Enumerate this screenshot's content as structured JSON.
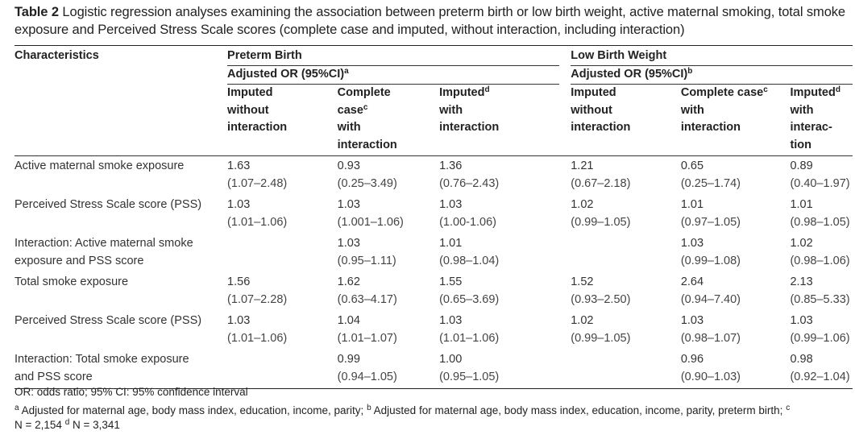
{
  "caption": {
    "label": "Table 2",
    "text": "Logistic regression analyses examining the association between preterm birth or low birth weight, active maternal smoking, total smoke exposure and Perceived Stress Scale scores (complete case and imputed, without interaction, including interaction)"
  },
  "header": {
    "characteristics": "Characteristics",
    "group_preterm": "Preterm Birth",
    "group_lbw": "Low Birth Weight",
    "adjusted_preterm": "Adjusted OR (95%CI)",
    "adjusted_preterm_sup": "a",
    "adjusted_lbw": "Adjusted OR (95%CI)",
    "adjusted_lbw_sup": "b",
    "columns": [
      {
        "line1": "Imputed",
        "line2": "without",
        "line3": "interaction",
        "line4": "",
        "sup": ""
      },
      {
        "line1": "Complete",
        "line2": "case",
        "line3": "with",
        "line4": "interaction",
        "sup": "c"
      },
      {
        "line1": "Imputed",
        "line2": "with",
        "line3": "interaction",
        "line4": "",
        "sup": "d"
      },
      {
        "line1": "Imputed",
        "line2": "without",
        "line3": "interaction",
        "line4": "",
        "sup": ""
      },
      {
        "line1": "Complete case",
        "line2": "with",
        "line3": "interaction",
        "line4": "",
        "sup": "c"
      },
      {
        "line1": "Imputed",
        "line2": "with",
        "line3": "interac-",
        "line4": "tion",
        "sup": "d"
      }
    ]
  },
  "rows": [
    {
      "label1": "Active maternal smoke exposure",
      "label2": "",
      "cells": [
        {
          "or": "1.63",
          "ci": "(1.07–2.48)"
        },
        {
          "or": "0.93",
          "ci": "(0.25–3.49)"
        },
        {
          "or": "1.36",
          "ci": "(0.76–2.43)"
        },
        {
          "or": "1.21",
          "ci": "(0.67–2.18)"
        },
        {
          "or": "0.65",
          "ci": "(0.25–1.74)"
        },
        {
          "or": "0.89",
          "ci": "(0.40–1.97)"
        }
      ]
    },
    {
      "label1": "Perceived Stress Scale score (PSS)",
      "label2": "",
      "cells": [
        {
          "or": "1.03",
          "ci": "(1.01–1.06)"
        },
        {
          "or": "1.03",
          "ci": "(1.001–1.06)"
        },
        {
          "or": "1.03",
          "ci": "(1.00-1.06)"
        },
        {
          "or": "1.02",
          "ci": "(0.99–1.05)"
        },
        {
          "or": "1.01",
          "ci": "(0.97–1.05)"
        },
        {
          "or": "1.01",
          "ci": "(0.98–1.05)"
        }
      ]
    },
    {
      "label1": "Interaction: Active maternal smoke",
      "label2": "exposure and PSS score",
      "cells": [
        {
          "or": "",
          "ci": ""
        },
        {
          "or": "1.03",
          "ci": "(0.95–1.11)"
        },
        {
          "or": "1.01",
          "ci": "(0.98–1.04)"
        },
        {
          "or": "",
          "ci": ""
        },
        {
          "or": "1.03",
          "ci": "(0.99–1.08)"
        },
        {
          "or": "1.02",
          "ci": "(0.98–1.06)"
        }
      ]
    },
    {
      "label1": "Total smoke exposure",
      "label2": "",
      "cells": [
        {
          "or": "1.56",
          "ci": "(1.07–2.28)"
        },
        {
          "or": "1.62",
          "ci": "(0.63–4.17)"
        },
        {
          "or": "1.55",
          "ci": "(0.65–3.69)"
        },
        {
          "or": "1.52",
          "ci": "(0.93–2.50)"
        },
        {
          "or": "2.64",
          "ci": "(0.94–7.40)"
        },
        {
          "or": "2.13",
          "ci": "(0.85–5.33)"
        }
      ]
    },
    {
      "label1": "Perceived Stress Scale score (PSS)",
      "label2": "",
      "cells": [
        {
          "or": "1.03",
          "ci": "(1.01–1.06)"
        },
        {
          "or": "1.04",
          "ci": "(1.01–1.07)"
        },
        {
          "or": "1.03",
          "ci": "(1.01–1.06)"
        },
        {
          "or": "1.02",
          "ci": "(0.99–1.05)"
        },
        {
          "or": "1.03",
          "ci": "(0.98–1.07)"
        },
        {
          "or": "1.03",
          "ci": "(0.99–1.06)"
        }
      ]
    },
    {
      "label1": "Interaction: Total smoke exposure",
      "label2": "and PSS score",
      "cells": [
        {
          "or": "",
          "ci": ""
        },
        {
          "or": "0.99",
          "ci": "(0.94–1.05)"
        },
        {
          "or": "1.00",
          "ci": "(0.95–1.05)"
        },
        {
          "or": "",
          "ci": ""
        },
        {
          "or": "0.96",
          "ci": "(0.90–1.03)"
        },
        {
          "or": "0.98",
          "ci": "(0.92–1.04)"
        }
      ]
    }
  ],
  "footnotes": {
    "abbrev": "OR: odds ratio; 95% CI: 95% confidence interval",
    "a_mark": "a",
    "a_text": "Adjusted for maternal age, body mass index, education, income, parity;",
    "b_mark": "b",
    "b_text": "Adjusted for maternal age, body mass index, education, income, parity, preterm birth;",
    "c_mark": "c",
    "c_text": "N = 2,154",
    "d_mark": "d",
    "d_text": "N = 3,341"
  }
}
